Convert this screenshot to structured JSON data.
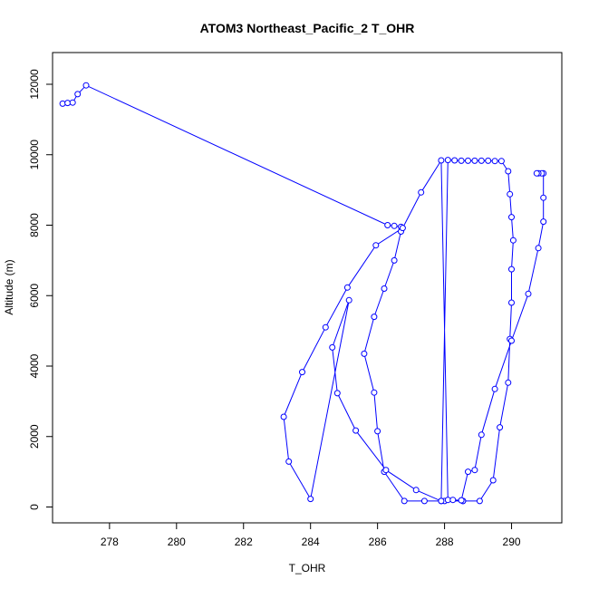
{
  "chart_data": {
    "type": "line",
    "title": "ATOM3 Northeast_Pacific_2 T_OHR",
    "xlabel": "T_OHR",
    "ylabel": "Altitude (m)",
    "xlim": [
      276.3,
      291.5
    ],
    "ylim": [
      -450,
      12900
    ],
    "xticks": [
      278,
      280,
      282,
      284,
      286,
      288,
      290
    ],
    "yticks": [
      0,
      2000,
      4000,
      6000,
      8000,
      10000,
      12000
    ],
    "series": [
      {
        "color": "#0000ff",
        "marker": "open-circle",
        "x": [
          276.6,
          276.75,
          276.9,
          277.05,
          277.3,
          286.3,
          286.5,
          286.7,
          286.7,
          286.5,
          286.2,
          285.9,
          285.6,
          285.9,
          286.0,
          286.2,
          286.8,
          287.4,
          287.9,
          288.1,
          288.3,
          288.5,
          288.7,
          288.9,
          289.1,
          289.3,
          289.5,
          289.7,
          289.9,
          289.95,
          290.0,
          290.05,
          290.0,
          290.0,
          289.95,
          289.9,
          289.65,
          289.45,
          289.05,
          288.55,
          288.55,
          288.0,
          287.9,
          287.15,
          286.25,
          285.35,
          284.8,
          284.65,
          285.15,
          284.0,
          283.35,
          283.2,
          283.75,
          284.45,
          285.1,
          285.95,
          286.75,
          287.3,
          287.9,
          288.1,
          288.25,
          288.5,
          288.7,
          288.9,
          289.1,
          289.5,
          290.0,
          290.5,
          290.8,
          290.95,
          290.95,
          290.95,
          290.9,
          290.8,
          290.75
        ],
        "y": [
          11450,
          11470,
          11480,
          11720,
          11970,
          8000,
          7980,
          7950,
          7820,
          7000,
          6200,
          5400,
          4350,
          3250,
          2150,
          1000,
          170,
          170,
          170,
          9850,
          9840,
          9830,
          9830,
          9830,
          9830,
          9830,
          9820,
          9820,
          9530,
          8880,
          8230,
          7570,
          6750,
          5800,
          4770,
          3530,
          2260,
          760,
          170,
          170,
          170,
          170,
          170,
          480,
          1050,
          2170,
          3230,
          4530,
          5870,
          230,
          1290,
          2560,
          3830,
          5100,
          6230,
          7430,
          7920,
          8930,
          9840,
          200,
          200,
          190,
          1000,
          1050,
          2050,
          3350,
          4720,
          6050,
          7350,
          8100,
          8780,
          9470,
          9470,
          9470,
          9470
        ]
      }
    ]
  }
}
